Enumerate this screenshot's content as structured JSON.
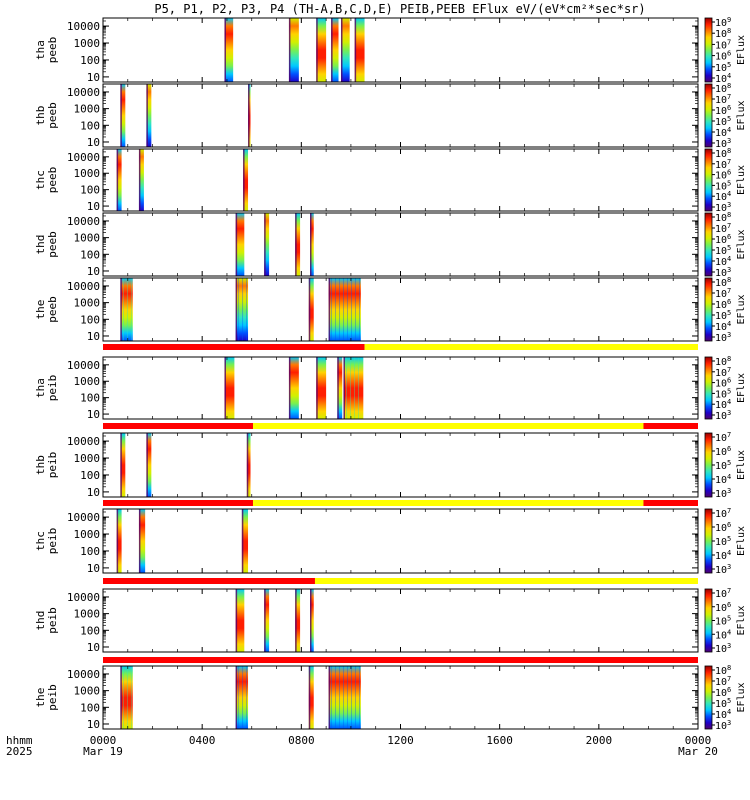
{
  "title": "P5, P1, P2, P3, P4 (TH-A,B,C,D,E) PEIB,PEEB EFlux eV/(eV*cm²*sec*sr)",
  "colors": {
    "flag_red": "#ff0000",
    "flag_yellow": "#ffff00",
    "colormap": [
      "#50006e",
      "#1e00c8",
      "#0050ff",
      "#00c8ff",
      "#32e6be",
      "#78f050",
      "#d2f000",
      "#ffd200",
      "#ff7800",
      "#ff1e00",
      "#960000"
    ],
    "dens_trace": "#000000"
  },
  "chart_data": {
    "type": "heatmap",
    "x_axis": {
      "range_hours": [
        0,
        24
      ],
      "tick_labels": [
        "0000",
        "0400",
        "0800",
        "1200",
        "1600",
        "2000",
        "0000"
      ],
      "tick_hours": [
        0,
        4,
        8,
        12,
        16,
        20,
        24
      ],
      "row_label_top": "hhmm",
      "row_label_bottom": "2025",
      "date_labels": [
        {
          "hour": 0,
          "text": "Mar 19"
        },
        {
          "hour": 24,
          "text": "Mar 20"
        }
      ]
    },
    "y_axis": {
      "scale": "log",
      "range_eV": [
        5,
        30000
      ],
      "tick_values": [
        10,
        100,
        1000,
        10000
      ],
      "tick_labels": [
        "10",
        "100",
        "1000",
        "10000"
      ]
    },
    "panels": [
      {
        "probe": "tha",
        "species": "peeb",
        "zlabel": "EFlux",
        "cbar_exps": [
          4,
          5,
          6,
          7,
          8,
          9
        ],
        "segments": [
          [
            4.9,
            5.25
          ],
          [
            7.5,
            7.9
          ],
          [
            8.6,
            9.0
          ],
          [
            9.2,
            9.5
          ],
          [
            9.6,
            9.95
          ],
          [
            10.15,
            10.55
          ]
        ]
      },
      {
        "probe": "thb",
        "species": "peeb",
        "zlabel": "EFlux",
        "cbar_exps": [
          3,
          4,
          5,
          6,
          7,
          8
        ],
        "segments": [
          [
            0.7,
            0.9
          ],
          [
            1.75,
            1.95
          ],
          [
            5.85,
            5.95
          ]
        ]
      },
      {
        "probe": "thc",
        "species": "peeb",
        "zlabel": "EFlux",
        "cbar_exps": [
          3,
          4,
          5,
          6,
          7,
          8
        ],
        "segments": [
          [
            0.55,
            0.75
          ],
          [
            1.45,
            1.65
          ],
          [
            5.65,
            5.85
          ]
        ]
      },
      {
        "probe": "thd",
        "species": "peeb",
        "zlabel": "EFlux",
        "cbar_exps": [
          3,
          4,
          5,
          6,
          7,
          8
        ],
        "segments": [
          [
            5.35,
            5.7
          ],
          [
            6.5,
            6.7
          ],
          [
            7.75,
            7.95
          ],
          [
            8.35,
            8.5
          ]
        ]
      },
      {
        "probe": "the",
        "species": "peeb",
        "zlabel": "EFlux",
        "cbar_exps": [
          3,
          4,
          5,
          6,
          7,
          8
        ],
        "segments": [
          [
            0.7,
            1.2
          ],
          [
            5.35,
            5.85
          ],
          [
            8.3,
            8.5
          ],
          [
            9.1,
            10.4
          ]
        ]
      },
      {
        "probe": "tha",
        "species": "peib",
        "zlabel": "EFlux",
        "cbar_exps": [
          3,
          4,
          5,
          6,
          7,
          8
        ],
        "segments": [
          [
            4.9,
            5.3
          ],
          [
            7.5,
            7.9
          ],
          [
            8.6,
            9.0
          ],
          [
            9.45,
            9.65
          ],
          [
            9.7,
            10.5
          ]
        ]
      },
      {
        "probe": "thb",
        "species": "peib",
        "zlabel": "EFlux",
        "cbar_exps": [
          3,
          4,
          5,
          6,
          7
        ],
        "segments": [
          [
            0.7,
            0.9
          ],
          [
            1.75,
            1.95
          ],
          [
            5.8,
            5.95
          ]
        ]
      },
      {
        "probe": "thc",
        "species": "peib",
        "zlabel": "EFlux",
        "cbar_exps": [
          3,
          4,
          5,
          6,
          7
        ],
        "segments": [
          [
            0.55,
            0.75
          ],
          [
            1.45,
            1.7
          ],
          [
            5.6,
            5.85
          ]
        ]
      },
      {
        "probe": "thd",
        "species": "peib",
        "zlabel": "EFlux",
        "cbar_exps": [
          3,
          4,
          5,
          6,
          7
        ],
        "segments": [
          [
            5.35,
            5.7
          ],
          [
            6.5,
            6.7
          ],
          [
            7.75,
            7.95
          ],
          [
            8.35,
            8.5
          ]
        ]
      },
      {
        "probe": "the",
        "species": "peib",
        "zlabel": "EFlux",
        "cbar_exps": [
          3,
          4,
          5,
          6,
          7,
          8
        ],
        "segments": [
          [
            0.7,
            1.2
          ],
          [
            5.35,
            5.85
          ],
          [
            8.3,
            8.5
          ],
          [
            9.1,
            10.4
          ]
        ]
      }
    ],
    "flag_bars": [
      {
        "after_panel": 4,
        "segments": [
          {
            "from": 0,
            "to": 10.55,
            "color": "red"
          },
          {
            "from": 10.55,
            "to": 24,
            "color": "yellow"
          }
        ]
      },
      {
        "after_panel": 5,
        "segments": [
          {
            "from": 0,
            "to": 6.05,
            "color": "red"
          },
          {
            "from": 6.05,
            "to": 21.8,
            "color": "yellow"
          },
          {
            "from": 21.8,
            "to": 24,
            "color": "red"
          }
        ]
      },
      {
        "after_panel": 6,
        "segments": [
          {
            "from": 0,
            "to": 6.05,
            "color": "red"
          },
          {
            "from": 6.05,
            "to": 21.8,
            "color": "yellow"
          },
          {
            "from": 21.8,
            "to": 24,
            "color": "red"
          }
        ]
      },
      {
        "after_panel": 7,
        "segments": [
          {
            "from": 0,
            "to": 8.55,
            "color": "red"
          },
          {
            "from": 8.55,
            "to": 24,
            "color": "yellow"
          }
        ]
      },
      {
        "after_panel": 8,
        "segments": [
          {
            "from": 0,
            "to": 24,
            "color": "red"
          }
        ]
      }
    ]
  }
}
